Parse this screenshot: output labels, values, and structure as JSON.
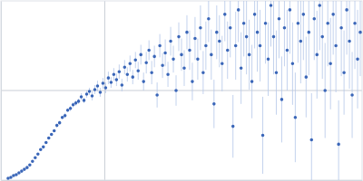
{
  "chart_data": {
    "type": "scatter",
    "color": "#3a66b8",
    "marker": "circle",
    "grid": true,
    "tick_labels": false,
    "xlim": [
      0,
      400
    ],
    "ylim": [
      0,
      200
    ],
    "xticks": [
      115
    ],
    "yticks": [
      100
    ],
    "x": [
      8,
      11,
      14,
      17,
      20,
      23,
      26,
      29,
      32,
      35,
      38,
      41,
      44,
      47,
      50,
      53,
      56,
      59,
      62,
      65,
      68,
      71,
      74,
      77,
      80,
      83,
      86,
      89,
      92,
      95,
      98,
      101,
      104,
      107,
      110,
      113,
      116,
      119,
      122,
      125,
      128,
      131,
      134,
      137,
      140,
      143,
      146,
      149,
      152,
      155,
      158,
      161,
      164,
      167,
      170,
      173,
      176,
      179,
      182,
      185,
      188,
      191,
      194,
      197,
      200,
      203,
      206,
      209,
      212,
      215,
      218,
      221,
      224,
      227,
      230,
      233,
      236,
      239,
      242,
      245,
      248,
      251,
      254,
      257,
      260,
      263,
      266,
      269,
      272,
      275,
      278,
      281,
      284,
      287,
      290,
      293,
      296,
      299,
      302,
      305,
      308,
      311,
      314,
      317,
      320,
      323,
      326,
      329,
      332,
      335,
      338,
      341,
      344,
      347,
      350,
      353,
      356,
      359,
      362,
      365,
      368,
      371,
      374,
      377,
      380,
      383,
      386,
      389,
      392,
      395,
      398
    ],
    "values": [
      2,
      3,
      5,
      6,
      8,
      10,
      12,
      14,
      17,
      21,
      25,
      29,
      34,
      37,
      42,
      47,
      51,
      55,
      61,
      64,
      70,
      72,
      78,
      80,
      84,
      86,
      88,
      93,
      89,
      96,
      99,
      94,
      101,
      105,
      98,
      108,
      103,
      114,
      109,
      118,
      112,
      121,
      106,
      126,
      118,
      130,
      115,
      134,
      122,
      140,
      110,
      131,
      145,
      120,
      138,
      95,
      150,
      128,
      142,
      118,
      155,
      135,
      100,
      160,
      140,
      125,
      165,
      145,
      110,
      158,
      135,
      170,
      120,
      150,
      180,
      140,
      85,
      165,
      155,
      130,
      185,
      145,
      170,
      60,
      150,
      190,
      125,
      175,
      160,
      140,
      110,
      185,
      165,
      150,
      50,
      175,
      135,
      195,
      160,
      120,
      180,
      90,
      170,
      145,
      190,
      130,
      70,
      175,
      155,
      185,
      115,
      165,
      45,
      180,
      140,
      195,
      160,
      100,
      175,
      130,
      185,
      150,
      40,
      170,
      120,
      190,
      155,
      95,
      175,
      135,
      165
    ],
    "errors": [
      1,
      1,
      1,
      1,
      1,
      1,
      1,
      1,
      1,
      1,
      1,
      1,
      1,
      1,
      1,
      1,
      1,
      1,
      2,
      2,
      2,
      3,
      2,
      3,
      3,
      3,
      3,
      4,
      3,
      4,
      4,
      5,
      5,
      6,
      5,
      6,
      6,
      7,
      6,
      7,
      7,
      8,
      7,
      8,
      8,
      9,
      8,
      9,
      10,
      11,
      10,
      12,
      11,
      13,
      12,
      14,
      13,
      14,
      15,
      14,
      16,
      15,
      17,
      16,
      18,
      20,
      19,
      22,
      21,
      24,
      23,
      25,
      24,
      27,
      26,
      28,
      27,
      30,
      29,
      31,
      30,
      32,
      33,
      35,
      38,
      36,
      40,
      37,
      42,
      39,
      41,
      38,
      44,
      40,
      43,
      45,
      41,
      46,
      42,
      47,
      44,
      48,
      43,
      45,
      49,
      46,
      50,
      44,
      47,
      51,
      45,
      48,
      52,
      46,
      49,
      50,
      47,
      53,
      48,
      51,
      45,
      52,
      49,
      54,
      47,
      50,
      53,
      48,
      51,
      55,
      49
    ]
  }
}
